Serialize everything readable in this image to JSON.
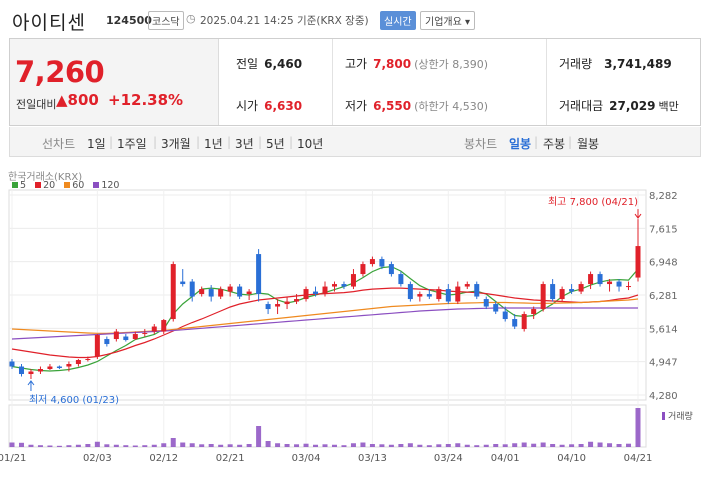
{
  "header": {
    "name": "아이티센",
    "code": "124500",
    "market": "코스닥",
    "datetime": "2025.04.21 14:25  기준(KRX 장중)",
    "realtime": "실시간",
    "overview": "기업개요 ▾"
  },
  "price": {
    "current": "7,260",
    "change_label": "전일대비",
    "change_arrow": "▲",
    "change_abs": "800",
    "change_pct": "+12.38%"
  },
  "stats": {
    "prev_close": {
      "label": "전일",
      "value": "6,460"
    },
    "open": {
      "label": "시가",
      "value": "6,630"
    },
    "high": {
      "label": "고가",
      "value": "7,800",
      "sub": "(상한가 8,390)"
    },
    "low": {
      "label": "저가",
      "value": "6,550",
      "sub": "(하한가 4,530)"
    },
    "volume": {
      "label": "거래량",
      "value": "3,741,489"
    },
    "turnover": {
      "label": "거래대금",
      "value": "27,029",
      "unit": "백만"
    }
  },
  "toolbar": {
    "line_chart": "선차트",
    "periods": [
      "1일",
      "1주일",
      "3개월",
      "1년",
      "3년",
      "5년",
      "10년"
    ],
    "candle_chart": "봉차트",
    "candle_periods": [
      "일봉",
      "주봉",
      "월봉"
    ],
    "selected_candle": "일봉"
  },
  "colors": {
    "up": "#e0212a",
    "down": "#2a6fd6",
    "ma5": "#3aa33a",
    "ma20": "#e0212a",
    "ma60": "#ef8a1f",
    "ma120": "#8b4fc1",
    "volume": "#8b4fc1",
    "selected": "#2a6fd6"
  },
  "chart_data": {
    "type": "candlestick",
    "source": "한국거래소(KRX)",
    "legend": [
      {
        "label": "5",
        "color": "#3aa33a"
      },
      {
        "label": "20",
        "color": "#e0212a"
      },
      {
        "label": "60",
        "color": "#ef8a1f"
      },
      {
        "label": "120",
        "color": "#8b4fc1"
      }
    ],
    "y_ticks": [
      4280,
      4947,
      5614,
      6281,
      6948,
      7615,
      8282
    ],
    "y_tick_labels": [
      "4,280",
      "4,947",
      "5,614",
      "6,281",
      "6,948",
      "7,615",
      "8,282"
    ],
    "ylim": [
      4280,
      8282
    ],
    "x_tick_labels": [
      {
        "index": 0,
        "label": "01/21"
      },
      {
        "index": 9,
        "label": "02/03"
      },
      {
        "index": 16,
        "label": "02/12"
      },
      {
        "index": 23,
        "label": "02/21"
      },
      {
        "index": 31,
        "label": "03/04"
      },
      {
        "index": 38,
        "label": "03/13"
      },
      {
        "index": 46,
        "label": "03/24"
      },
      {
        "index": 52,
        "label": "04/01"
      },
      {
        "index": 59,
        "label": "04/10"
      },
      {
        "index": 66,
        "label": "04/21"
      }
    ],
    "candles": [
      [
        4950,
        5000,
        4800,
        4850
      ],
      [
        4850,
        4900,
        4650,
        4700
      ],
      [
        4700,
        4800,
        4600,
        4750
      ],
      [
        4750,
        4850,
        4700,
        4800
      ],
      [
        4800,
        4900,
        4780,
        4850
      ],
      [
        4850,
        4870,
        4800,
        4820
      ],
      [
        4850,
        4950,
        4750,
        4900
      ],
      [
        4900,
        5000,
        4850,
        4980
      ],
      [
        4980,
        5050,
        4950,
        5000
      ],
      [
        5050,
        5500,
        5000,
        5480
      ],
      [
        5400,
        5450,
        5250,
        5300
      ],
      [
        5400,
        5600,
        5350,
        5550
      ],
      [
        5450,
        5500,
        5350,
        5380
      ],
      [
        5400,
        5550,
        5380,
        5500
      ],
      [
        5500,
        5600,
        5450,
        5520
      ],
      [
        5550,
        5700,
        5500,
        5650
      ],
      [
        5550,
        5800,
        5500,
        5780
      ],
      [
        5800,
        6950,
        5750,
        6900
      ],
      [
        6550,
        6800,
        6450,
        6500
      ],
      [
        6550,
        6600,
        6150,
        6250
      ],
      [
        6300,
        6450,
        6250,
        6400
      ],
      [
        6400,
        6480,
        6150,
        6250
      ],
      [
        6250,
        6450,
        6200,
        6400
      ],
      [
        6350,
        6500,
        6250,
        6450
      ],
      [
        6450,
        6500,
        6200,
        6250
      ],
      [
        6300,
        6400,
        6180,
        6350
      ],
      [
        7100,
        7200,
        6150,
        6300
      ],
      [
        6100,
        6150,
        5900,
        6000
      ],
      [
        6050,
        6200,
        5900,
        6100
      ],
      [
        6100,
        6250,
        6000,
        6150
      ],
      [
        6150,
        6300,
        6100,
        6200
      ],
      [
        6200,
        6450,
        6150,
        6400
      ],
      [
        6350,
        6450,
        6250,
        6300
      ],
      [
        6300,
        6550,
        6250,
        6450
      ],
      [
        6450,
        6550,
        6350,
        6500
      ],
      [
        6500,
        6550,
        6400,
        6450
      ],
      [
        6450,
        6800,
        6400,
        6700
      ],
      [
        6700,
        6950,
        6650,
        6900
      ],
      [
        6900,
        7050,
        6850,
        7000
      ],
      [
        7000,
        7050,
        6800,
        6850
      ],
      [
        6900,
        6950,
        6650,
        6700
      ],
      [
        6700,
        6750,
        6450,
        6500
      ],
      [
        6500,
        6550,
        6150,
        6200
      ],
      [
        6250,
        6350,
        6150,
        6300
      ],
      [
        6300,
        6400,
        6200,
        6250
      ],
      [
        6200,
        6450,
        6150,
        6400
      ],
      [
        6400,
        6500,
        6100,
        6150
      ],
      [
        6150,
        6550,
        6100,
        6450
      ],
      [
        6450,
        6550,
        6400,
        6500
      ],
      [
        6500,
        6550,
        6200,
        6250
      ],
      [
        6200,
        6250,
        6000,
        6050
      ],
      [
        6100,
        6150,
        5900,
        5950
      ],
      [
        5950,
        6050,
        5750,
        5800
      ],
      [
        5800,
        5900,
        5600,
        5650
      ],
      [
        5600,
        5950,
        5550,
        5900
      ],
      [
        5900,
        6050,
        5800,
        6000
      ],
      [
        6000,
        6550,
        5950,
        6500
      ],
      [
        6500,
        6600,
        6150,
        6200
      ],
      [
        6200,
        6450,
        6150,
        6400
      ],
      [
        6400,
        6500,
        6300,
        6350
      ],
      [
        6350,
        6550,
        6300,
        6500
      ],
      [
        6500,
        6750,
        6400,
        6700
      ],
      [
        6700,
        6750,
        6450,
        6500
      ],
      [
        6500,
        6600,
        6350,
        6550
      ],
      [
        6550,
        6600,
        6350,
        6450
      ],
      [
        6450,
        6550,
        6380,
        6460
      ],
      [
        6630,
        7800,
        6550,
        7260
      ]
    ],
    "volumes": [
      30,
      28,
      15,
      12,
      10,
      8,
      12,
      15,
      20,
      35,
      18,
      15,
      12,
      10,
      12,
      15,
      25,
      60,
      30,
      25,
      18,
      20,
      15,
      18,
      15,
      20,
      140,
      40,
      25,
      20,
      18,
      22,
      15,
      18,
      15,
      12,
      25,
      30,
      20,
      18,
      15,
      20,
      25,
      15,
      12,
      18,
      20,
      25,
      15,
      12,
      15,
      20,
      18,
      25,
      30,
      22,
      30,
      20,
      15,
      18,
      20,
      35,
      30,
      25,
      20,
      22,
      260
    ],
    "ma": {
      "5": [
        4850,
        4820,
        4790,
        4770,
        4760,
        4770,
        4790,
        4830,
        4880,
        4950,
        5060,
        5170,
        5270,
        5390,
        5440,
        5490,
        5600,
        5900,
        6100,
        6250,
        6400,
        6420,
        6400,
        6350,
        6300,
        6280,
        6320,
        6300,
        6180,
        6120,
        6160,
        6230,
        6280,
        6330,
        6390,
        6450,
        6520,
        6630,
        6750,
        6830,
        6850,
        6760,
        6610,
        6470,
        6380,
        6330,
        6280,
        6300,
        6340,
        6360,
        6300,
        6150,
        6000,
        5870,
        5850,
        5870,
        5990,
        6100,
        6250,
        6350,
        6400,
        6480,
        6540,
        6580,
        6590,
        6580,
        6800
      ],
      "20": [
        5200,
        5170,
        5140,
        5110,
        5080,
        5060,
        5040,
        5030,
        5030,
        5050,
        5090,
        5140,
        5200,
        5270,
        5330,
        5400,
        5480,
        5560,
        5650,
        5730,
        5800,
        5880,
        5960,
        6040,
        6100,
        6140,
        6180,
        6200,
        6220,
        6240,
        6260,
        6280,
        6300,
        6310,
        6320,
        6330,
        6350,
        6380,
        6400,
        6410,
        6420,
        6420,
        6410,
        6400,
        6390,
        6380,
        6360,
        6350,
        6340,
        6330,
        6310,
        6280,
        6250,
        6220,
        6200,
        6180,
        6170,
        6160,
        6150,
        6140,
        6130,
        6140,
        6150,
        6170,
        6200,
        6220,
        6280
      ],
      "60": [
        5600,
        5590,
        5580,
        5570,
        5560,
        5550,
        5540,
        5530,
        5520,
        5515,
        5515,
        5520,
        5530,
        5540,
        5550,
        5560,
        5570,
        5590,
        5610,
        5630,
        5650,
        5670,
        5690,
        5710,
        5730,
        5750,
        5770,
        5790,
        5810,
        5830,
        5850,
        5870,
        5890,
        5910,
        5930,
        5950,
        5970,
        5990,
        6010,
        6030,
        6050,
        6060,
        6070,
        6080,
        6090,
        6100,
        6110,
        6115,
        6120,
        6125,
        6130,
        6130,
        6130,
        6125,
        6120,
        6115,
        6115,
        6115,
        6120,
        6125,
        6130,
        6140,
        6150,
        6160,
        6170,
        6180,
        6200
      ],
      "120": [
        5400,
        5410,
        5420,
        5430,
        5440,
        5450,
        5460,
        5470,
        5480,
        5490,
        5500,
        5510,
        5520,
        5530,
        5540,
        5550,
        5560,
        5570,
        5585,
        5600,
        5615,
        5630,
        5645,
        5660,
        5675,
        5690,
        5705,
        5720,
        5735,
        5750,
        5765,
        5780,
        5795,
        5810,
        5825,
        5840,
        5855,
        5870,
        5885,
        5900,
        5915,
        5930,
        5945,
        5960,
        5970,
        5980,
        5990,
        6000,
        6005,
        6010,
        6015,
        6020,
        6020,
        6020,
        6020,
        6020,
        6020,
        6020,
        6020,
        6020,
        6020,
        6020,
        6020,
        6020,
        6020,
        6020,
        6020
      ]
    },
    "high_marker": {
      "label": "최고 7,800 (04/21)",
      "index": 66,
      "value": 7800
    },
    "low_marker": {
      "label": "최저 4,600 (01/23)",
      "index": 2,
      "value": 4600
    },
    "volume_label": "거래량"
  }
}
